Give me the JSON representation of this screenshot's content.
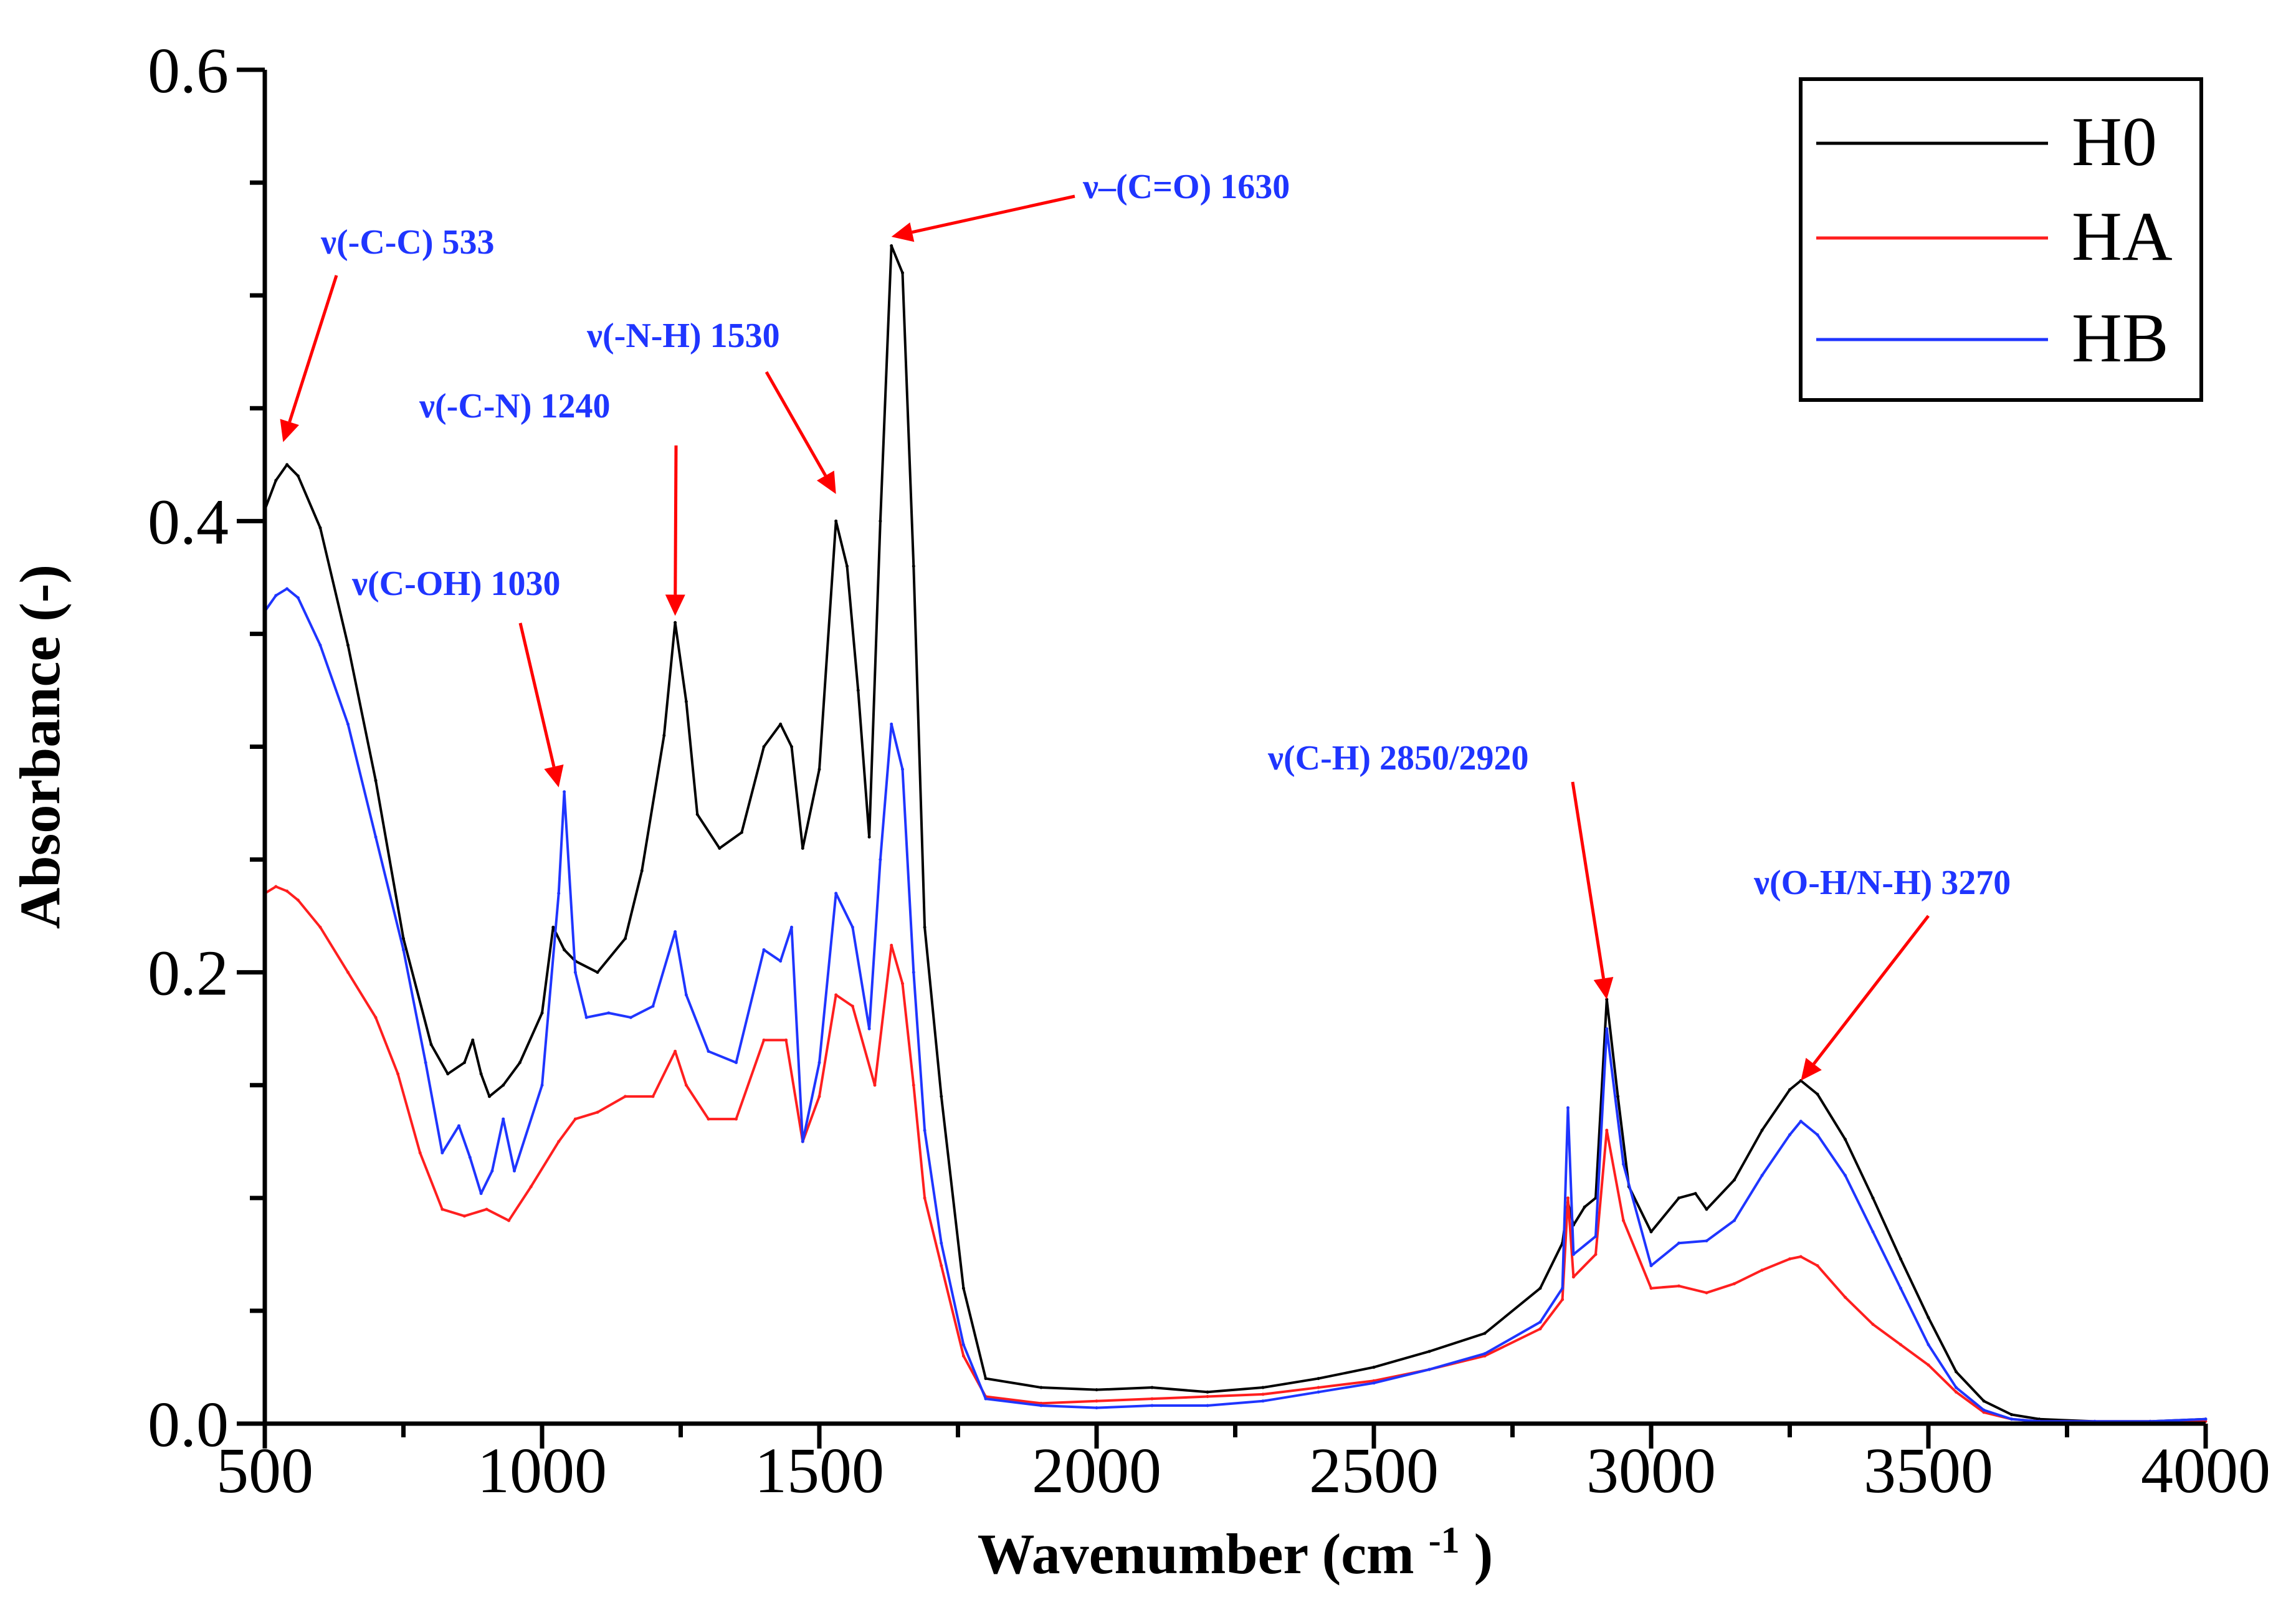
{
  "chart_data": {
    "type": "line",
    "xlabel": "Wavenumber (cm-1)",
    "xlabel_main": "Wavenumber (cm",
    "xlabel_sup": "-1",
    "xlabel_close": ")",
    "ylabel": "Absorbance (-)",
    "xlim": [
      500,
      4000
    ],
    "ylim": [
      0.0,
      0.6
    ],
    "xticks": [
      500,
      1000,
      1500,
      2000,
      2500,
      3000,
      3500,
      4000
    ],
    "xtick_labels": [
      "500",
      "1000",
      "1500",
      "2000",
      "2500",
      "3000",
      "3500",
      "4000"
    ],
    "yticks": [
      0.0,
      0.2,
      0.4,
      0.6
    ],
    "ytick_labels": [
      "0.0",
      "0.2",
      "0.4",
      "0.6"
    ],
    "grid": false,
    "legend_position": "top-right",
    "series": [
      {
        "name": "H0",
        "color": "#000000",
        "points": [
          [
            500,
            0.405
          ],
          [
            520,
            0.418
          ],
          [
            540,
            0.425
          ],
          [
            560,
            0.42
          ],
          [
            600,
            0.397
          ],
          [
            650,
            0.345
          ],
          [
            700,
            0.285
          ],
          [
            750,
            0.215
          ],
          [
            800,
            0.168
          ],
          [
            830,
            0.155
          ],
          [
            860,
            0.16
          ],
          [
            875,
            0.17
          ],
          [
            890,
            0.155
          ],
          [
            905,
            0.145
          ],
          [
            930,
            0.15
          ],
          [
            960,
            0.16
          ],
          [
            1000,
            0.182
          ],
          [
            1020,
            0.22
          ],
          [
            1040,
            0.21
          ],
          [
            1060,
            0.205
          ],
          [
            1100,
            0.2
          ],
          [
            1150,
            0.215
          ],
          [
            1180,
            0.245
          ],
          [
            1220,
            0.305
          ],
          [
            1240,
            0.355
          ],
          [
            1260,
            0.32
          ],
          [
            1280,
            0.27
          ],
          [
            1320,
            0.255
          ],
          [
            1360,
            0.262
          ],
          [
            1400,
            0.3
          ],
          [
            1430,
            0.31
          ],
          [
            1450,
            0.3
          ],
          [
            1470,
            0.255
          ],
          [
            1500,
            0.29
          ],
          [
            1530,
            0.4
          ],
          [
            1550,
            0.38
          ],
          [
            1570,
            0.325
          ],
          [
            1590,
            0.26
          ],
          [
            1610,
            0.4
          ],
          [
            1630,
            0.522
          ],
          [
            1650,
            0.51
          ],
          [
            1670,
            0.38
          ],
          [
            1690,
            0.22
          ],
          [
            1720,
            0.145
          ],
          [
            1760,
            0.06
          ],
          [
            1800,
            0.02
          ],
          [
            1900,
            0.016
          ],
          [
            2000,
            0.015
          ],
          [
            2100,
            0.016
          ],
          [
            2200,
            0.014
          ],
          [
            2300,
            0.016
          ],
          [
            2400,
            0.02
          ],
          [
            2500,
            0.025
          ],
          [
            2600,
            0.032
          ],
          [
            2700,
            0.04
          ],
          [
            2800,
            0.06
          ],
          [
            2840,
            0.08
          ],
          [
            2850,
            0.098
          ],
          [
            2860,
            0.088
          ],
          [
            2880,
            0.096
          ],
          [
            2900,
            0.1
          ],
          [
            2920,
            0.188
          ],
          [
            2940,
            0.145
          ],
          [
            2960,
            0.105
          ],
          [
            3000,
            0.085
          ],
          [
            3050,
            0.1
          ],
          [
            3080,
            0.102
          ],
          [
            3100,
            0.095
          ],
          [
            3150,
            0.108
          ],
          [
            3200,
            0.13
          ],
          [
            3250,
            0.148
          ],
          [
            3270,
            0.152
          ],
          [
            3300,
            0.146
          ],
          [
            3350,
            0.126
          ],
          [
            3400,
            0.1
          ],
          [
            3450,
            0.073
          ],
          [
            3500,
            0.047
          ],
          [
            3550,
            0.023
          ],
          [
            3600,
            0.01
          ],
          [
            3650,
            0.004
          ],
          [
            3700,
            0.002
          ],
          [
            3800,
            0.001
          ],
          [
            3900,
            0.001
          ],
          [
            4000,
            0.002
          ]
        ]
      },
      {
        "name": "HA",
        "color": "#ff1f1f",
        "points": [
          [
            500,
            0.235
          ],
          [
            520,
            0.238
          ],
          [
            540,
            0.236
          ],
          [
            560,
            0.232
          ],
          [
            600,
            0.22
          ],
          [
            650,
            0.2
          ],
          [
            700,
            0.18
          ],
          [
            740,
            0.155
          ],
          [
            780,
            0.12
          ],
          [
            820,
            0.095
          ],
          [
            860,
            0.092
          ],
          [
            900,
            0.095
          ],
          [
            940,
            0.09
          ],
          [
            980,
            0.105
          ],
          [
            1030,
            0.125
          ],
          [
            1060,
            0.135
          ],
          [
            1100,
            0.138
          ],
          [
            1150,
            0.145
          ],
          [
            1200,
            0.145
          ],
          [
            1240,
            0.165
          ],
          [
            1260,
            0.15
          ],
          [
            1300,
            0.135
          ],
          [
            1350,
            0.135
          ],
          [
            1400,
            0.17
          ],
          [
            1440,
            0.17
          ],
          [
            1470,
            0.125
          ],
          [
            1500,
            0.145
          ],
          [
            1530,
            0.19
          ],
          [
            1560,
            0.185
          ],
          [
            1600,
            0.15
          ],
          [
            1630,
            0.212
          ],
          [
            1650,
            0.195
          ],
          [
            1670,
            0.15
          ],
          [
            1690,
            0.1
          ],
          [
            1720,
            0.07
          ],
          [
            1760,
            0.03
          ],
          [
            1800,
            0.012
          ],
          [
            1900,
            0.009
          ],
          [
            2000,
            0.01
          ],
          [
            2100,
            0.011
          ],
          [
            2200,
            0.012
          ],
          [
            2300,
            0.013
          ],
          [
            2400,
            0.016
          ],
          [
            2500,
            0.019
          ],
          [
            2600,
            0.024
          ],
          [
            2700,
            0.03
          ],
          [
            2800,
            0.042
          ],
          [
            2840,
            0.055
          ],
          [
            2850,
            0.1
          ],
          [
            2860,
            0.065
          ],
          [
            2900,
            0.075
          ],
          [
            2920,
            0.13
          ],
          [
            2950,
            0.09
          ],
          [
            3000,
            0.06
          ],
          [
            3050,
            0.061
          ],
          [
            3100,
            0.058
          ],
          [
            3150,
            0.062
          ],
          [
            3200,
            0.068
          ],
          [
            3250,
            0.073
          ],
          [
            3270,
            0.074
          ],
          [
            3300,
            0.07
          ],
          [
            3350,
            0.056
          ],
          [
            3400,
            0.044
          ],
          [
            3450,
            0.035
          ],
          [
            3500,
            0.026
          ],
          [
            3550,
            0.014
          ],
          [
            3600,
            0.005
          ],
          [
            3650,
            0.002
          ],
          [
            3700,
            0.001
          ],
          [
            3800,
            0.001
          ],
          [
            3900,
            0.001
          ],
          [
            4000,
            0.001
          ]
        ]
      },
      {
        "name": "HB",
        "color": "#1f35ff",
        "points": [
          [
            500,
            0.36
          ],
          [
            520,
            0.367
          ],
          [
            540,
            0.37
          ],
          [
            560,
            0.366
          ],
          [
            600,
            0.345
          ],
          [
            650,
            0.31
          ],
          [
            700,
            0.26
          ],
          [
            750,
            0.21
          ],
          [
            790,
            0.16
          ],
          [
            820,
            0.12
          ],
          [
            850,
            0.132
          ],
          [
            870,
            0.118
          ],
          [
            890,
            0.102
          ],
          [
            910,
            0.112
          ],
          [
            930,
            0.135
          ],
          [
            950,
            0.112
          ],
          [
            1000,
            0.15
          ],
          [
            1030,
            0.235
          ],
          [
            1040,
            0.28
          ],
          [
            1060,
            0.2
          ],
          [
            1080,
            0.18
          ],
          [
            1120,
            0.182
          ],
          [
            1160,
            0.18
          ],
          [
            1200,
            0.185
          ],
          [
            1240,
            0.218
          ],
          [
            1260,
            0.19
          ],
          [
            1300,
            0.165
          ],
          [
            1350,
            0.16
          ],
          [
            1400,
            0.21
          ],
          [
            1430,
            0.205
          ],
          [
            1450,
            0.22
          ],
          [
            1470,
            0.125
          ],
          [
            1500,
            0.16
          ],
          [
            1530,
            0.235
          ],
          [
            1560,
            0.22
          ],
          [
            1590,
            0.175
          ],
          [
            1610,
            0.25
          ],
          [
            1630,
            0.31
          ],
          [
            1650,
            0.29
          ],
          [
            1670,
            0.2
          ],
          [
            1690,
            0.13
          ],
          [
            1720,
            0.08
          ],
          [
            1760,
            0.035
          ],
          [
            1800,
            0.011
          ],
          [
            1900,
            0.008
          ],
          [
            2000,
            0.007
          ],
          [
            2100,
            0.008
          ],
          [
            2200,
            0.008
          ],
          [
            2300,
            0.01
          ],
          [
            2400,
            0.014
          ],
          [
            2500,
            0.018
          ],
          [
            2600,
            0.024
          ],
          [
            2700,
            0.031
          ],
          [
            2800,
            0.045
          ],
          [
            2840,
            0.06
          ],
          [
            2850,
            0.14
          ],
          [
            2860,
            0.075
          ],
          [
            2900,
            0.083
          ],
          [
            2920,
            0.175
          ],
          [
            2950,
            0.115
          ],
          [
            3000,
            0.07
          ],
          [
            3050,
            0.08
          ],
          [
            3100,
            0.081
          ],
          [
            3150,
            0.09
          ],
          [
            3200,
            0.11
          ],
          [
            3250,
            0.128
          ],
          [
            3270,
            0.134
          ],
          [
            3300,
            0.128
          ],
          [
            3350,
            0.11
          ],
          [
            3400,
            0.085
          ],
          [
            3450,
            0.06
          ],
          [
            3500,
            0.035
          ],
          [
            3550,
            0.016
          ],
          [
            3600,
            0.006
          ],
          [
            3650,
            0.002
          ],
          [
            3700,
            0.001
          ],
          [
            3800,
            0.001
          ],
          [
            3900,
            0.001
          ],
          [
            4000,
            0.002
          ]
        ]
      }
    ],
    "legend": {
      "entries": [
        {
          "name": "H0",
          "color": "#000000"
        },
        {
          "name": "HA",
          "color": "#ff1f1f"
        },
        {
          "name": "HB",
          "color": "#1f35ff"
        }
      ]
    },
    "annotations": [
      {
        "label": "ν(-C-C) 533",
        "target_x": 533,
        "target_y": 0.435
      },
      {
        "label": "ν(-C-N) 1240",
        "target_x": 1240,
        "target_y": 0.358
      },
      {
        "label": "ν(C-OH) 1030",
        "target_x": 1030,
        "target_y": 0.282
      },
      {
        "label": "ν(-N-H) 1530",
        "target_x": 1530,
        "target_y": 0.412
      },
      {
        "label": "ν–(C=O) 1630",
        "target_x": 1630,
        "target_y": 0.526
      },
      {
        "label": "ν(C-H) 2850/2920",
        "target_x": 2920,
        "target_y": 0.188
      },
      {
        "label": "ν(O-H/N-H) 3270",
        "target_x": 3270,
        "target_y": 0.152
      }
    ]
  }
}
